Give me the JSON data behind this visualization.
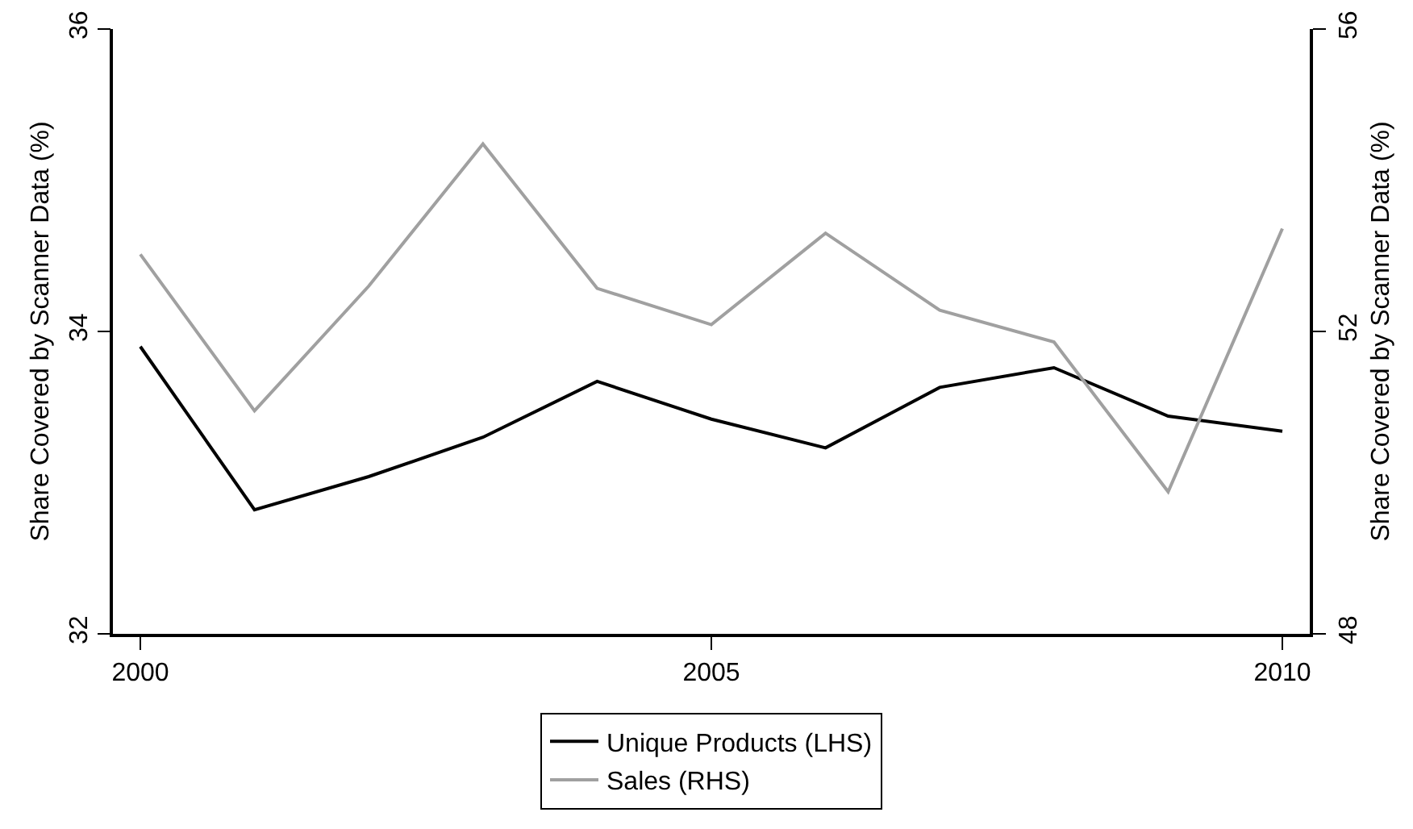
{
  "chart_data": {
    "type": "line",
    "x": [
      2000,
      2001,
      2002,
      2003,
      2004,
      2005,
      2006,
      2007,
      2008,
      2009,
      2010
    ],
    "series": [
      {
        "name": "Unique Products (LHS)",
        "color": "#000000",
        "values": [
          33.9,
          32.82,
          33.04,
          33.3,
          33.67,
          33.42,
          33.23,
          33.63,
          33.76,
          33.44,
          33.34
        ]
      },
      {
        "name": "Sales (RHS)",
        "color": "#a0a0a0",
        "axis": "y2",
        "values": [
          53.02,
          50.95,
          52.6,
          54.48,
          52.57,
          52.09,
          53.3,
          52.28,
          51.86,
          49.88,
          53.36
        ]
      }
    ],
    "xlim": [
      1999.76,
      2010.24
    ],
    "xticks": [
      2000,
      2005,
      2010
    ],
    "ylim": [
      32,
      36
    ],
    "yticks": [
      32,
      34,
      36
    ],
    "y2lim": [
      48,
      56
    ],
    "y2ticks": [
      48,
      52,
      56
    ],
    "ylabel": "Share Covered by Scanner Data (%)",
    "y2label": "Share Covered by Scanner Data (%)",
    "grid": false,
    "legend": "bottom",
    "marker": "none",
    "line_style": "solid"
  }
}
